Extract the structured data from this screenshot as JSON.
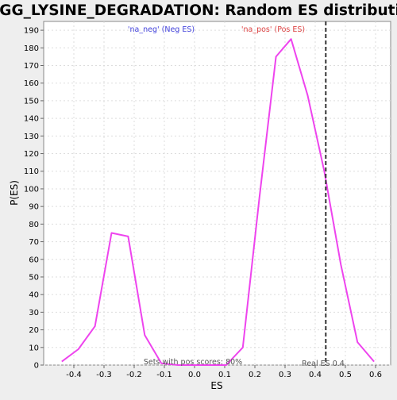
{
  "chart_data": {
    "type": "line",
    "title": "KEGG_LYSINE_DEGRADATION: Random ES distribution",
    "xlabel": "ES",
    "ylabel": "P(ES)",
    "xlim": [
      -0.5,
      0.65
    ],
    "ylim": [
      0,
      195
    ],
    "x_ticks": [
      -0.4,
      -0.3,
      -0.2,
      -0.1,
      0.0,
      0.1,
      0.2,
      0.3,
      0.4,
      0.5,
      0.6
    ],
    "x_tick_labels": [
      "-0.4",
      "-0.3",
      "-0.2",
      "-0.1",
      "0.0",
      "0.1",
      "0.2",
      "0.3",
      "0.4",
      "0.5",
      "0.6"
    ],
    "y_ticks": [
      0,
      10,
      20,
      30,
      40,
      50,
      60,
      70,
      80,
      90,
      100,
      110,
      120,
      130,
      140,
      150,
      160,
      170,
      180,
      190
    ],
    "y_tick_labels": [
      "0",
      "10",
      "20",
      "30",
      "40",
      "50",
      "60",
      "70",
      "80",
      "90",
      "100",
      "110",
      "120",
      "130",
      "140",
      "150",
      "160",
      "170",
      "180",
      "190"
    ],
    "grid": true,
    "series": [
      {
        "color": "#ee44ee",
        "x": [
          -0.44,
          -0.385,
          -0.33,
          -0.275,
          -0.22,
          -0.165,
          -0.11,
          -0.055,
          0.0,
          0.055,
          0.105,
          0.16,
          0.215,
          0.27,
          0.32,
          0.375,
          0.43,
          0.485,
          0.54,
          0.595
        ],
        "y": [
          2,
          9,
          22,
          75,
          73,
          17,
          1,
          0,
          0,
          0,
          0,
          10,
          95,
          175,
          185,
          153,
          110,
          57,
          13,
          2
        ]
      }
    ],
    "reference_line": {
      "x": 0.435,
      "color": "#333333",
      "style": "dashed"
    },
    "annotations": {
      "neg_label": "'na_neg' (Neg ES)",
      "pos_label": "'na_pos' (Pos ES)",
      "pos_scores": "Sets with pos scores: 80%",
      "real_es": "Real ES 0.4"
    },
    "colors": {
      "neg_label": "#4444dd",
      "pos_label": "#dd4444",
      "series": "#ee44ee",
      "plot_background": "#ffffff",
      "page_background": "#eeeeee"
    }
  }
}
